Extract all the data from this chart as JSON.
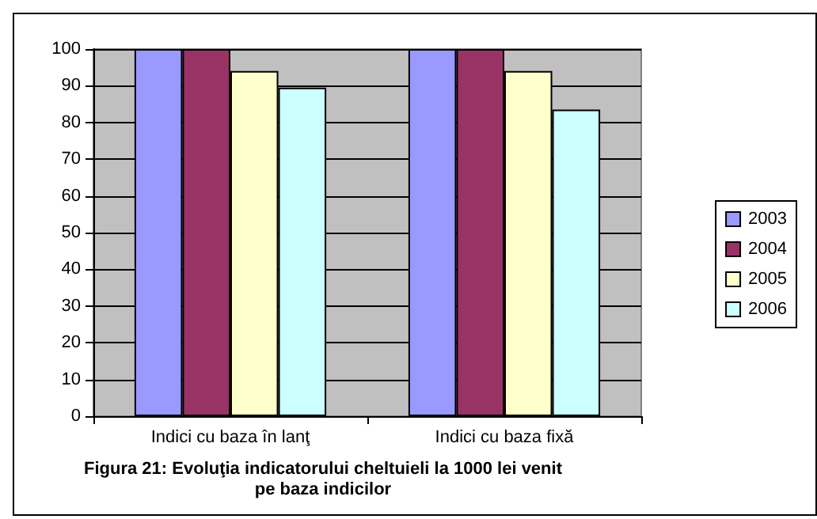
{
  "chart_data": {
    "type": "bar",
    "title": "Figura 21: Evoluţia indicatorului cheltuieli la 1000 lei venit\npe baza indicilor",
    "categories": [
      "Indici cu baza în lanţ",
      "Indici cu baza fixă"
    ],
    "series": [
      {
        "name": "2003",
        "color": "#9999ff",
        "values": [
          100,
          100
        ]
      },
      {
        "name": "2004",
        "color": "#993366",
        "values": [
          100,
          100
        ]
      },
      {
        "name": "2005",
        "color": "#ffffcc",
        "values": [
          94,
          94
        ]
      },
      {
        "name": "2006",
        "color": "#ccffff",
        "values": [
          89.5,
          83.5
        ]
      }
    ],
    "ylim": [
      0,
      100
    ],
    "yticks": [
      0,
      10,
      20,
      30,
      40,
      50,
      60,
      70,
      80,
      90,
      100
    ],
    "grid": "y",
    "legend": "right"
  }
}
